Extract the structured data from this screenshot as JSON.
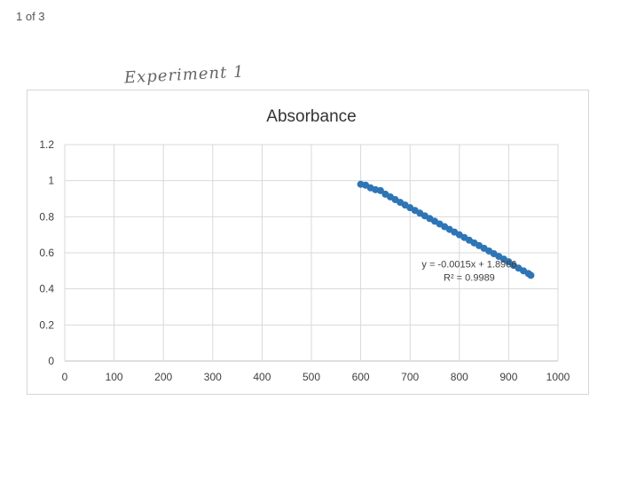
{
  "page_counter": "1 of 3",
  "handwritten_note": "Experiment 1",
  "chart_data": {
    "type": "scatter",
    "title": "Absorbance",
    "xlabel": "",
    "ylabel": "",
    "xlim": [
      0,
      1000
    ],
    "ylim": [
      0,
      1.2
    ],
    "x_ticks": [
      0,
      100,
      200,
      300,
      400,
      500,
      600,
      700,
      800,
      900,
      1000
    ],
    "y_ticks": [
      "0",
      "0.2",
      "0.4",
      "0.6",
      "0.8",
      "1",
      "1.2"
    ],
    "grid": true,
    "series": [
      {
        "color": "#2e75b6",
        "points": [
          [
            600,
            0.98
          ],
          [
            610,
            0.975
          ],
          [
            620,
            0.96
          ],
          [
            630,
            0.95
          ],
          [
            640,
            0.945
          ],
          [
            650,
            0.925
          ],
          [
            660,
            0.91
          ],
          [
            670,
            0.895
          ],
          [
            680,
            0.88
          ],
          [
            690,
            0.865
          ],
          [
            700,
            0.85
          ],
          [
            710,
            0.835
          ],
          [
            720,
            0.82
          ],
          [
            730,
            0.805
          ],
          [
            740,
            0.79
          ],
          [
            750,
            0.775
          ],
          [
            760,
            0.76
          ],
          [
            770,
            0.745
          ],
          [
            780,
            0.73
          ],
          [
            790,
            0.715
          ],
          [
            800,
            0.7
          ],
          [
            810,
            0.685
          ],
          [
            820,
            0.67
          ],
          [
            830,
            0.655
          ],
          [
            840,
            0.64
          ],
          [
            850,
            0.625
          ],
          [
            860,
            0.61
          ],
          [
            870,
            0.595
          ],
          [
            880,
            0.58
          ],
          [
            890,
            0.565
          ],
          [
            900,
            0.55
          ],
          [
            910,
            0.53
          ],
          [
            920,
            0.515
          ],
          [
            930,
            0.5
          ],
          [
            940,
            0.485
          ],
          [
            945,
            0.475
          ]
        ]
      }
    ],
    "trendline": {
      "equation": "y = -0.0015x + 1.8966",
      "r_squared": "R² = 0.9989",
      "slope": -0.0015,
      "intercept": 1.8966
    }
  }
}
